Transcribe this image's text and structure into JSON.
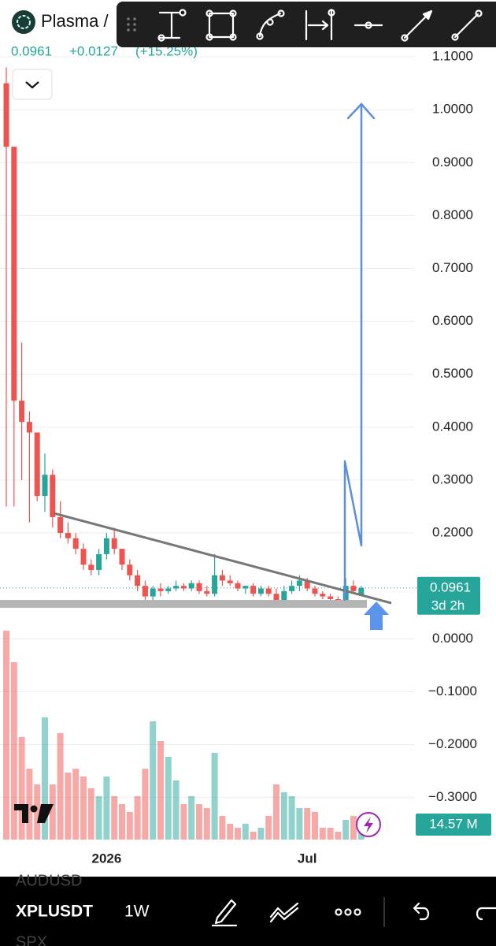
{
  "header": {
    "symbol_name": "Plasma /",
    "last_price": "0.0961",
    "change": "+0.0127",
    "change_pct": "(+15.25%)"
  },
  "chart_data": {
    "type": "candlestick",
    "categories": [
      null,
      null,
      null,
      null,
      null,
      null,
      null,
      null,
      null,
      null,
      null,
      null,
      null,
      "2026",
      null,
      null,
      null,
      null,
      null,
      null,
      null,
      null,
      null,
      null,
      null,
      null,
      null,
      null,
      null,
      null,
      null,
      null,
      null,
      null,
      null,
      null,
      null,
      null,
      null,
      "Jul",
      null,
      null,
      null,
      null,
      null,
      null,
      null
    ],
    "open": [
      1.05,
      0.93,
      0.45,
      0.41,
      0.39,
      0.27,
      0.31,
      0.23,
      0.2,
      0.19,
      0.17,
      0.14,
      0.13,
      0.16,
      0.19,
      0.17,
      0.14,
      0.12,
      0.1,
      0.08,
      0.095,
      0.09,
      0.095,
      0.1,
      0.095,
      0.105,
      0.09,
      0.085,
      0.12,
      0.11,
      0.105,
      0.095,
      0.1,
      0.085,
      0.095,
      0.085,
      0.07,
      0.09,
      0.1,
      0.11,
      0.095,
      0.085,
      0.08,
      0.075,
      0.07,
      0.1,
      0.0834
    ],
    "high": [
      1.08,
      0.93,
      0.56,
      0.43,
      0.39,
      0.35,
      0.32,
      0.26,
      0.22,
      0.2,
      0.18,
      0.15,
      0.17,
      0.2,
      0.21,
      0.17,
      0.15,
      0.13,
      0.11,
      0.1,
      0.105,
      0.1,
      0.11,
      0.105,
      0.11,
      0.11,
      0.1,
      0.16,
      0.13,
      0.12,
      0.11,
      0.1,
      0.105,
      0.1,
      0.1,
      0.095,
      0.1,
      0.11,
      0.12,
      0.115,
      0.1,
      0.09,
      0.085,
      0.08,
      0.115,
      0.11,
      0.1
    ],
    "low": [
      0.25,
      0.25,
      0.3,
      0.22,
      0.26,
      0.24,
      0.21,
      0.19,
      0.18,
      0.16,
      0.13,
      0.12,
      0.12,
      0.15,
      0.16,
      0.13,
      0.11,
      0.09,
      0.07,
      0.07,
      0.08,
      0.085,
      0.09,
      0.09,
      0.09,
      0.085,
      0.08,
      0.08,
      0.1,
      0.1,
      0.09,
      0.085,
      0.08,
      0.08,
      0.08,
      0.06,
      0.065,
      0.085,
      0.09,
      0.09,
      0.08,
      0.075,
      0.07,
      0.065,
      0.068,
      0.085,
      0.082
    ],
    "close": [
      0.93,
      0.45,
      0.41,
      0.39,
      0.27,
      0.31,
      0.23,
      0.2,
      0.19,
      0.17,
      0.14,
      0.13,
      0.16,
      0.19,
      0.17,
      0.14,
      0.12,
      0.1,
      0.08,
      0.095,
      0.09,
      0.095,
      0.1,
      0.095,
      0.105,
      0.09,
      0.085,
      0.12,
      0.11,
      0.105,
      0.095,
      0.1,
      0.085,
      0.095,
      0.085,
      0.07,
      0.09,
      0.1,
      0.11,
      0.095,
      0.085,
      0.08,
      0.075,
      0.07,
      0.1,
      0.09,
      0.0961
    ],
    "volume": [
      154.4,
      131.1,
      75.8,
      52.4,
      40.8,
      90.3,
      40.8,
      78.7,
      49.5,
      52.4,
      46.6,
      37.9,
      32.1,
      46.6,
      32.1,
      26.2,
      20.4,
      32.1,
      52.4,
      87.4,
      72.8,
      61.2,
      43.7,
      26.2,
      32.1,
      26.2,
      23.3,
      64.1,
      17.5,
      11.7,
      8.7,
      11.7,
      5.8,
      8.7,
      17.5,
      40.8,
      35,
      32.1,
      23.3,
      23.3,
      20.4,
      8.7,
      8.7,
      5.8,
      14.57,
      17.5,
      14.57
    ],
    "up_color": "#26a69a",
    "down_color": "#ef5350",
    "ylim": [
      -0.39,
      1.115
    ],
    "yticks": [
      {
        "value": 1.1,
        "label": "1.1000"
      },
      {
        "value": 1.0,
        "label": "1.0000"
      },
      {
        "value": 0.9,
        "label": "0.9000"
      },
      {
        "value": 0.8,
        "label": "0.8000"
      },
      {
        "value": 0.7,
        "label": "0.7000"
      },
      {
        "value": 0.6,
        "label": "0.6000"
      },
      {
        "value": 0.5,
        "label": "0.5000"
      },
      {
        "value": 0.4,
        "label": "0.4000"
      },
      {
        "value": 0.3,
        "label": "0.3000"
      },
      {
        "value": 0.2,
        "label": "0.2000"
      },
      {
        "value": 0.0,
        "label": "0.0000"
      },
      {
        "value": -0.1,
        "label": "−0.1000"
      },
      {
        "value": -0.2,
        "label": "−0.2000"
      },
      {
        "value": -0.3,
        "label": "−0.3000"
      }
    ],
    "grid": true,
    "last_price": {
      "value": 0.0961,
      "label": "0.0961"
    },
    "countdown": "3d 2h",
    "volume_label": "14.57 M"
  },
  "bottom_bar": {
    "prev_symbol": "AUDUSD",
    "symbol": "XPLUSDT",
    "interval": "1W",
    "next_symbol": "SPX"
  }
}
